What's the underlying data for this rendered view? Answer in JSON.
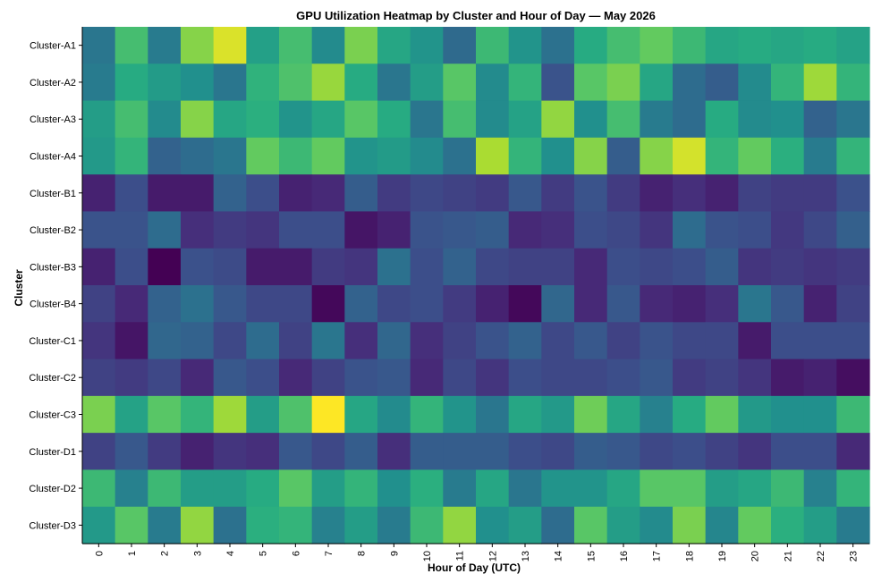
{
  "chart_data": {
    "type": "heatmap",
    "title": "GPU Utilization Heatmap by Cluster and Hour of Day — May 2026",
    "xlabel": "Hour of Day (UTC)",
    "ylabel": "Cluster",
    "x": [
      "0",
      "1",
      "2",
      "3",
      "4",
      "5",
      "6",
      "7",
      "8",
      "9",
      "10",
      "11",
      "12",
      "13",
      "14",
      "15",
      "16",
      "17",
      "18",
      "19",
      "20",
      "21",
      "22",
      "23"
    ],
    "y": [
      "Cluster-A1",
      "Cluster-A2",
      "Cluster-A3",
      "Cluster-A4",
      "Cluster-B1",
      "Cluster-B2",
      "Cluster-B3",
      "Cluster-B4",
      "Cluster-C1",
      "Cluster-C2",
      "Cluster-C3",
      "Cluster-D1",
      "Cluster-D2",
      "Cluster-D3"
    ],
    "colormap": "viridis",
    "legend": "none",
    "grid": false,
    "values": [
      [
        0.4,
        0.7,
        0.42,
        0.82,
        0.95,
        0.57,
        0.7,
        0.48,
        0.8,
        0.6,
        0.52,
        0.35,
        0.68,
        0.52,
        0.38,
        0.62,
        0.7,
        0.76,
        0.68,
        0.6,
        0.62,
        0.6,
        0.62,
        0.58
      ],
      [
        0.42,
        0.62,
        0.55,
        0.5,
        0.4,
        0.65,
        0.72,
        0.85,
        0.62,
        0.4,
        0.56,
        0.74,
        0.48,
        0.66,
        0.26,
        0.74,
        0.8,
        0.6,
        0.36,
        0.3,
        0.48,
        0.66,
        0.86,
        0.66
      ],
      [
        0.56,
        0.7,
        0.48,
        0.82,
        0.6,
        0.64,
        0.52,
        0.6,
        0.74,
        0.62,
        0.4,
        0.7,
        0.48,
        0.58,
        0.84,
        0.5,
        0.7,
        0.42,
        0.36,
        0.62,
        0.48,
        0.5,
        0.32,
        0.4
      ],
      [
        0.54,
        0.66,
        0.32,
        0.36,
        0.4,
        0.76,
        0.68,
        0.76,
        0.52,
        0.55,
        0.48,
        0.38,
        0.88,
        0.66,
        0.5,
        0.82,
        0.3,
        0.82,
        0.94,
        0.66,
        0.76,
        0.64,
        0.42,
        0.66
      ],
      [
        0.1,
        0.24,
        0.08,
        0.08,
        0.32,
        0.24,
        0.1,
        0.12,
        0.3,
        0.18,
        0.22,
        0.2,
        0.18,
        0.28,
        0.18,
        0.26,
        0.18,
        0.1,
        0.14,
        0.1,
        0.2,
        0.18,
        0.18,
        0.25
      ],
      [
        0.26,
        0.26,
        0.36,
        0.14,
        0.18,
        0.16,
        0.24,
        0.24,
        0.06,
        0.1,
        0.26,
        0.28,
        0.3,
        0.12,
        0.14,
        0.24,
        0.22,
        0.16,
        0.36,
        0.26,
        0.24,
        0.17,
        0.22,
        0.31
      ],
      [
        0.1,
        0.24,
        0.0,
        0.25,
        0.23,
        0.08,
        0.08,
        0.18,
        0.16,
        0.38,
        0.24,
        0.32,
        0.22,
        0.2,
        0.2,
        0.12,
        0.24,
        0.22,
        0.24,
        0.3,
        0.16,
        0.18,
        0.16,
        0.18
      ],
      [
        0.2,
        0.12,
        0.32,
        0.38,
        0.28,
        0.22,
        0.22,
        0.02,
        0.32,
        0.22,
        0.24,
        0.18,
        0.1,
        0.02,
        0.34,
        0.12,
        0.28,
        0.12,
        0.1,
        0.14,
        0.4,
        0.28,
        0.1,
        0.2
      ],
      [
        0.16,
        0.06,
        0.34,
        0.32,
        0.22,
        0.36,
        0.2,
        0.4,
        0.14,
        0.34,
        0.14,
        0.2,
        0.26,
        0.32,
        0.22,
        0.28,
        0.2,
        0.26,
        0.22,
        0.22,
        0.08,
        0.24,
        0.24,
        0.24
      ],
      [
        0.2,
        0.18,
        0.22,
        0.12,
        0.28,
        0.24,
        0.12,
        0.2,
        0.26,
        0.28,
        0.12,
        0.22,
        0.16,
        0.24,
        0.22,
        0.22,
        0.24,
        0.28,
        0.18,
        0.2,
        0.16,
        0.08,
        0.1,
        0.04
      ],
      [
        0.8,
        0.58,
        0.74,
        0.66,
        0.86,
        0.56,
        0.72,
        1.0,
        0.6,
        0.48,
        0.66,
        0.52,
        0.4,
        0.6,
        0.54,
        0.78,
        0.6,
        0.44,
        0.62,
        0.76,
        0.54,
        0.5,
        0.5,
        0.68
      ],
      [
        0.2,
        0.28,
        0.18,
        0.1,
        0.16,
        0.14,
        0.28,
        0.22,
        0.3,
        0.14,
        0.3,
        0.3,
        0.3,
        0.24,
        0.22,
        0.3,
        0.28,
        0.22,
        0.24,
        0.2,
        0.16,
        0.24,
        0.24,
        0.12
      ],
      [
        0.68,
        0.44,
        0.68,
        0.56,
        0.56,
        0.62,
        0.74,
        0.56,
        0.66,
        0.5,
        0.64,
        0.42,
        0.6,
        0.4,
        0.52,
        0.52,
        0.6,
        0.74,
        0.74,
        0.56,
        0.6,
        0.68,
        0.44,
        0.66
      ],
      [
        0.54,
        0.74,
        0.42,
        0.84,
        0.38,
        0.64,
        0.66,
        0.44,
        0.56,
        0.42,
        0.68,
        0.84,
        0.5,
        0.56,
        0.36,
        0.74,
        0.56,
        0.48,
        0.8,
        0.46,
        0.76,
        0.64,
        0.56,
        0.42
      ]
    ]
  }
}
